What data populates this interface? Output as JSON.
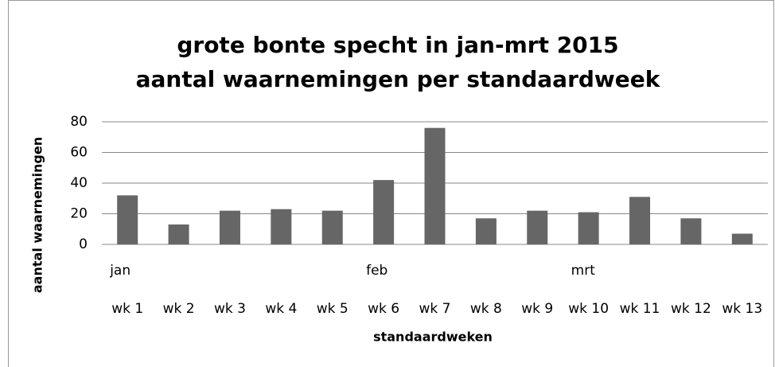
{
  "chart_data": {
    "type": "bar",
    "title": [
      "grote bonte specht in jan-mrt 2015",
      "aantal waarnemingen per standaardweek"
    ],
    "x_label": "standaardweken",
    "y_label": "aantal waarnemingen",
    "categories": [
      "wk 1",
      "wk 2",
      "wk 3",
      "wk 4",
      "wk 5",
      "wk 6",
      "wk 7",
      "wk 8",
      "wk 9",
      "wk 10",
      "wk 11",
      "wk 12",
      "wk 13"
    ],
    "groups": [
      "jan",
      null,
      null,
      null,
      null,
      "feb",
      null,
      null,
      null,
      "mrt",
      null,
      null,
      null
    ],
    "values": [
      32,
      13,
      22,
      23,
      22,
      42,
      76,
      17,
      22,
      21,
      31,
      17,
      7
    ],
    "color": "#666666",
    "ylim": [
      0,
      80
    ],
    "yticks": [
      0,
      20,
      40,
      60,
      80
    ],
    "grid": true
  }
}
